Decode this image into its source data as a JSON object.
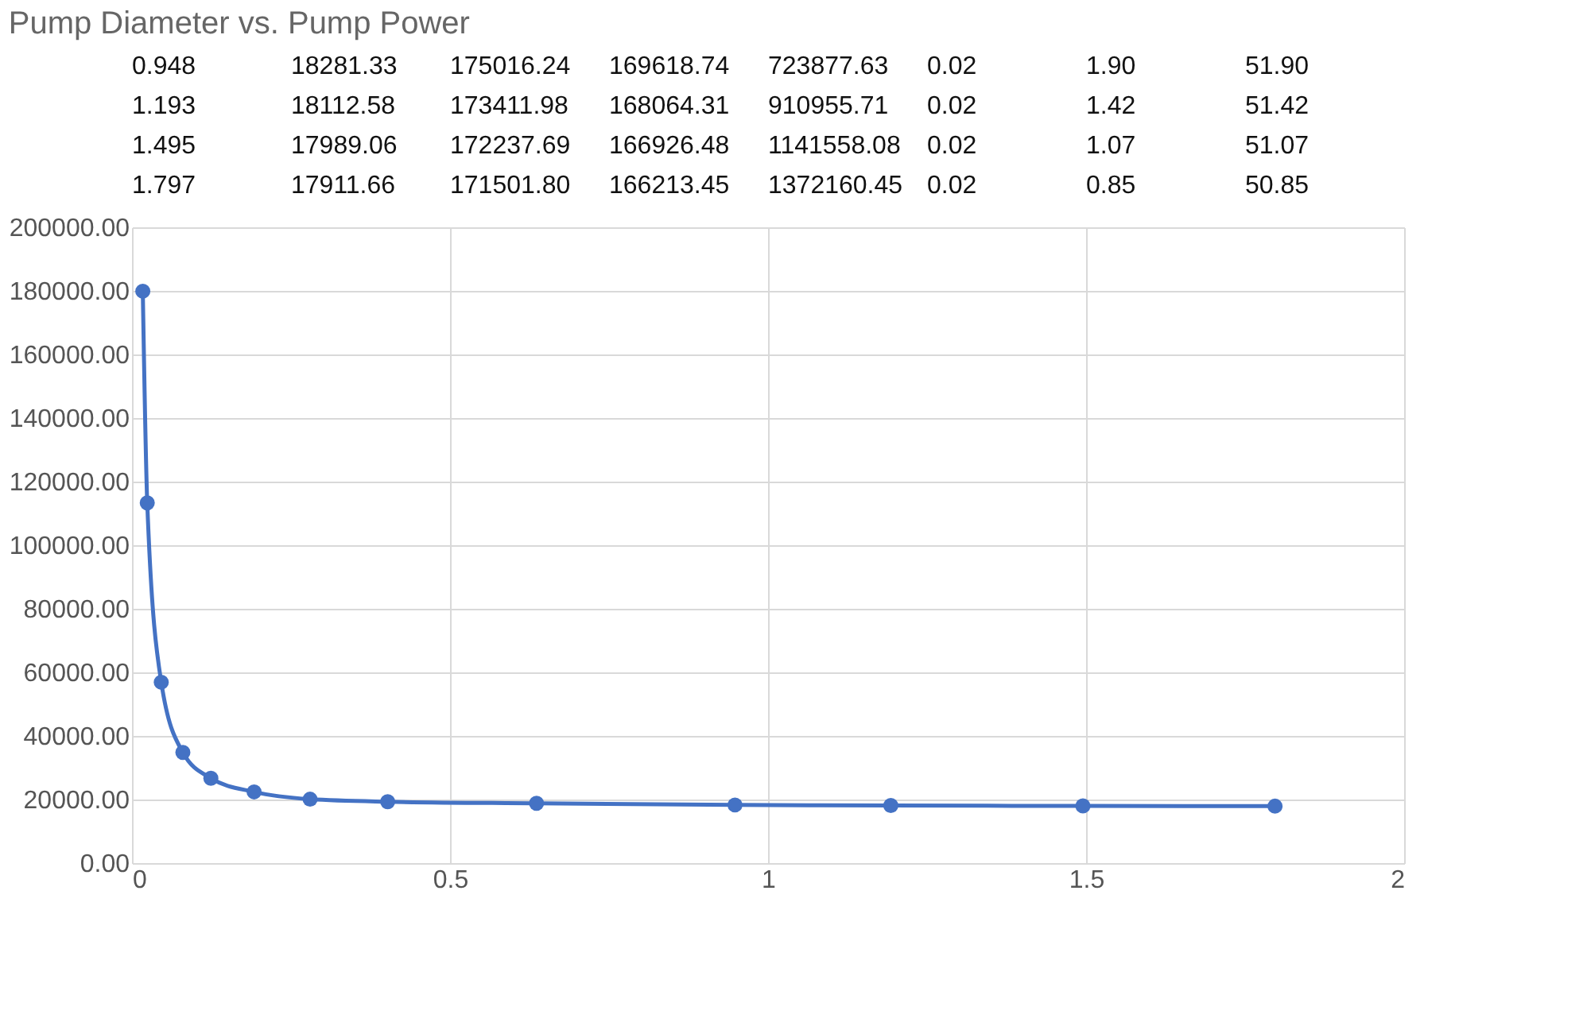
{
  "chart_data": {
    "type": "line",
    "title": "Pump Diameter vs. Pump Power",
    "x": [
      0.017,
      0.024,
      0.046,
      0.08,
      0.124,
      0.192,
      0.28,
      0.402,
      0.636,
      0.948,
      1.193,
      1.495,
      1.797
    ],
    "series": [
      {
        "color": "#4472c4",
        "values": [
          179900,
          113300,
          56900,
          34800,
          26700,
          22400,
          20100,
          19300,
          18800,
          18281.33,
          18112.58,
          17989.06,
          17911.66
        ]
      }
    ],
    "xlim": [
      0,
      2
    ],
    "xticks": [
      0,
      0.5,
      1,
      1.5,
      2
    ],
    "ylim": [
      0,
      200000
    ],
    "yticks": [
      {
        "value": 0,
        "label": "0.00"
      },
      {
        "value": 20000,
        "label": "20000.00"
      },
      {
        "value": 40000,
        "label": "40000.00"
      },
      {
        "value": 60000,
        "label": "60000.00"
      },
      {
        "value": 80000,
        "label": "80000.00"
      },
      {
        "value": 100000,
        "label": "100000.00"
      },
      {
        "value": 120000,
        "label": "120000.00"
      },
      {
        "value": 140000,
        "label": "140000.00"
      },
      {
        "value": 160000,
        "label": "160000.00"
      },
      {
        "value": 180000,
        "label": "180000.00"
      },
      {
        "value": 200000,
        "label": "200000.00"
      }
    ],
    "grid": true,
    "marker": "circle",
    "line_style": "solid",
    "annotations": [
      "0.948",
      "18281.33",
      "175016.24",
      "169618.74",
      "723877.63",
      "0.02",
      "1.90",
      "51.90",
      "1.193",
      "18112.58",
      "173411.98",
      "168064.31",
      "910955.71",
      "0.02",
      "1.42",
      "51.42",
      "1.495",
      "17989.06",
      "172237.69",
      "166926.48",
      "1141558.08",
      "0.02",
      "1.07",
      "51.07",
      "1.797",
      "17911.66",
      "171501.80",
      "166213.45",
      "1372160.45",
      "0.02",
      "0.85",
      "50.85"
    ]
  }
}
